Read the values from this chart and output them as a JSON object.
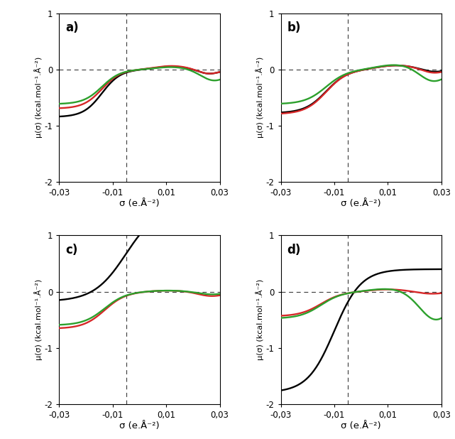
{
  "xlim": [
    -0.03,
    0.03
  ],
  "ylim": [
    -2.0,
    1.0
  ],
  "xticks": [
    -0.03,
    -0.01,
    0.01,
    0.03
  ],
  "xtick_labels": [
    "-0,03",
    "-0,01",
    "0,01",
    "0,03"
  ],
  "yticks": [
    -2,
    -1,
    0,
    1
  ],
  "xlabel": "σ (e.Å⁻²)",
  "ylabel": "μ(σ) (kcal.mol⁻¹.Å⁻²)",
  "vline_x": -0.005,
  "colors": {
    "green": "#2ca02c",
    "black": "#000000",
    "red": "#d62728"
  }
}
